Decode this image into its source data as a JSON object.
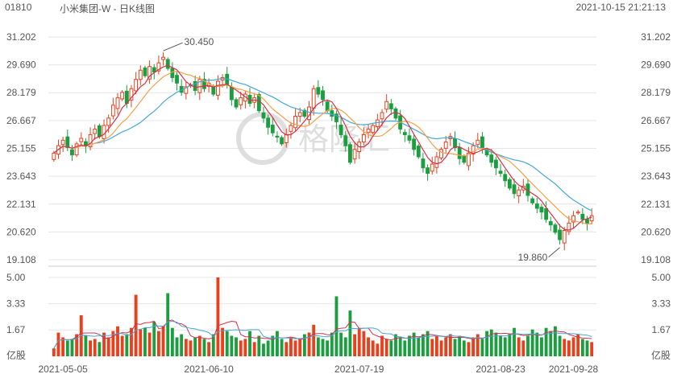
{
  "header": {
    "code": "01810",
    "name": "小米集团-W - 日K线图",
    "timestamp": "2021-10-15 21:21:13"
  },
  "watermark": {
    "text": "格隆汇",
    "logo": "格隆汇"
  },
  "colors": {
    "up": "#e8401c",
    "down": "#1a9e3f",
    "ma5": "#d6304a",
    "ma10": "#f5a047",
    "ma20": "#45a7d6",
    "grid": "#e6e6e6"
  },
  "chart_data": [
    {
      "type": "candlestick",
      "title": "小米集团-W - 日K线图",
      "y_ticks": [
        "31.202",
        "29.690",
        "28.179",
        "26.667",
        "25.155",
        "23.643",
        "22.131",
        "20.620",
        "19.108"
      ],
      "ylim": [
        19.108,
        31.202
      ],
      "x_ticks": [
        "2021-05-05",
        "2021-06-10",
        "2021-07-19",
        "2021-08-23",
        "2021-09-28"
      ],
      "annotations": [
        {
          "text": "30.450",
          "value": 30.45,
          "type": "high"
        },
        {
          "text": "19.860",
          "value": 19.86,
          "type": "low"
        }
      ],
      "closes": [
        24.9,
        25.3,
        25.6,
        25.2,
        24.8,
        25.4,
        25.7,
        25.3,
        25.9,
        26.2,
        25.8,
        26.4,
        26.8,
        27.5,
        27.9,
        28.2,
        27.6,
        28.4,
        28.9,
        29.4,
        29.1,
        29.6,
        29.3,
        29.8,
        30.1,
        29.5,
        29.0,
        28.7,
        28.2,
        28.5,
        28.6,
        28.3,
        28.9,
        28.4,
        28.7,
        28.1,
        28.8,
        29.0,
        28.6,
        27.8,
        27.4,
        27.9,
        28.1,
        27.6,
        27.9,
        27.2,
        26.8,
        26.3,
        26.0,
        25.8,
        25.4,
        25.9,
        26.4,
        26.9,
        27.1,
        26.9,
        27.4,
        28.4,
        28.1,
        27.8,
        27.2,
        26.9,
        26.6,
        25.9,
        25.3,
        24.4,
        25.1,
        25.5,
        25.9,
        26.2,
        26.4,
        26.7,
        27.1,
        27.7,
        27.3,
        26.8,
        26.2,
        25.9,
        25.6,
        25.1,
        24.7,
        24.1,
        23.8,
        24.3,
        24.7,
        25.1,
        25.5,
        25.8,
        25.2,
        24.6,
        24.4,
        24.9,
        25.3,
        25.6,
        25.2,
        24.8,
        24.4,
        24.1,
        23.8,
        23.4,
        23.0,
        22.7,
        22.9,
        23.1,
        22.6,
        22.2,
        21.9,
        21.7,
        21.3,
        21.0,
        20.6,
        20.2,
        20.7,
        21.1,
        21.5,
        21.7,
        21.3,
        21.1,
        21.5
      ],
      "ma_series": [
        {
          "name": "MA5"
        },
        {
          "name": "MA10"
        },
        {
          "name": "MA20"
        }
      ]
    },
    {
      "type": "bar",
      "title": "",
      "y_ticks": [
        "5.00",
        "3.33",
        "1.67"
      ],
      "ylabel": "亿股",
      "ylim": [
        0,
        5.2
      ],
      "volumes": [
        0.5,
        1.5,
        1.2,
        1.0,
        1.1,
        1.4,
        2.6,
        1.3,
        1.0,
        1.1,
        0.9,
        1.5,
        1.2,
        1.6,
        1.9,
        1.3,
        1.4,
        1.8,
        3.9,
        1.7,
        1.8,
        1.5,
        2.2,
        1.6,
        1.9,
        4.0,
        1.8,
        1.2,
        1.4,
        1.1,
        1.0,
        1.2,
        1.3,
        1.1,
        0.9,
        1.4,
        5.0,
        1.8,
        1.6,
        1.3,
        1.2,
        1.0,
        1.1,
        1.6,
        0.9,
        1.3,
        0.8,
        1.0,
        1.3,
        1.6,
        1.1,
        0.9,
        1.2,
        1.0,
        1.1,
        1.4,
        1.5,
        2.0,
        1.2,
        1.1,
        1.0,
        1.5,
        3.8,
        1.5,
        1.2,
        2.9,
        1.4,
        1.8,
        1.6,
        1.2,
        1.0,
        0.8,
        1.3,
        1.1,
        1.0,
        1.4,
        1.2,
        1.0,
        1.3,
        1.5,
        1.2,
        1.4,
        1.6,
        1.1,
        1.3,
        1.0,
        1.2,
        1.4,
        1.1,
        1.3,
        1.0,
        0.9,
        1.2,
        1.4,
        1.1,
        1.6,
        1.7,
        1.5,
        1.3,
        1.2,
        1.4,
        1.8,
        1.2,
        1.0,
        1.3,
        1.7,
        1.5,
        1.2,
        1.8,
        1.6,
        1.9,
        1.3,
        1.1,
        1.0,
        1.2,
        1.4,
        1.1,
        1.0,
        0.9
      ]
    }
  ]
}
